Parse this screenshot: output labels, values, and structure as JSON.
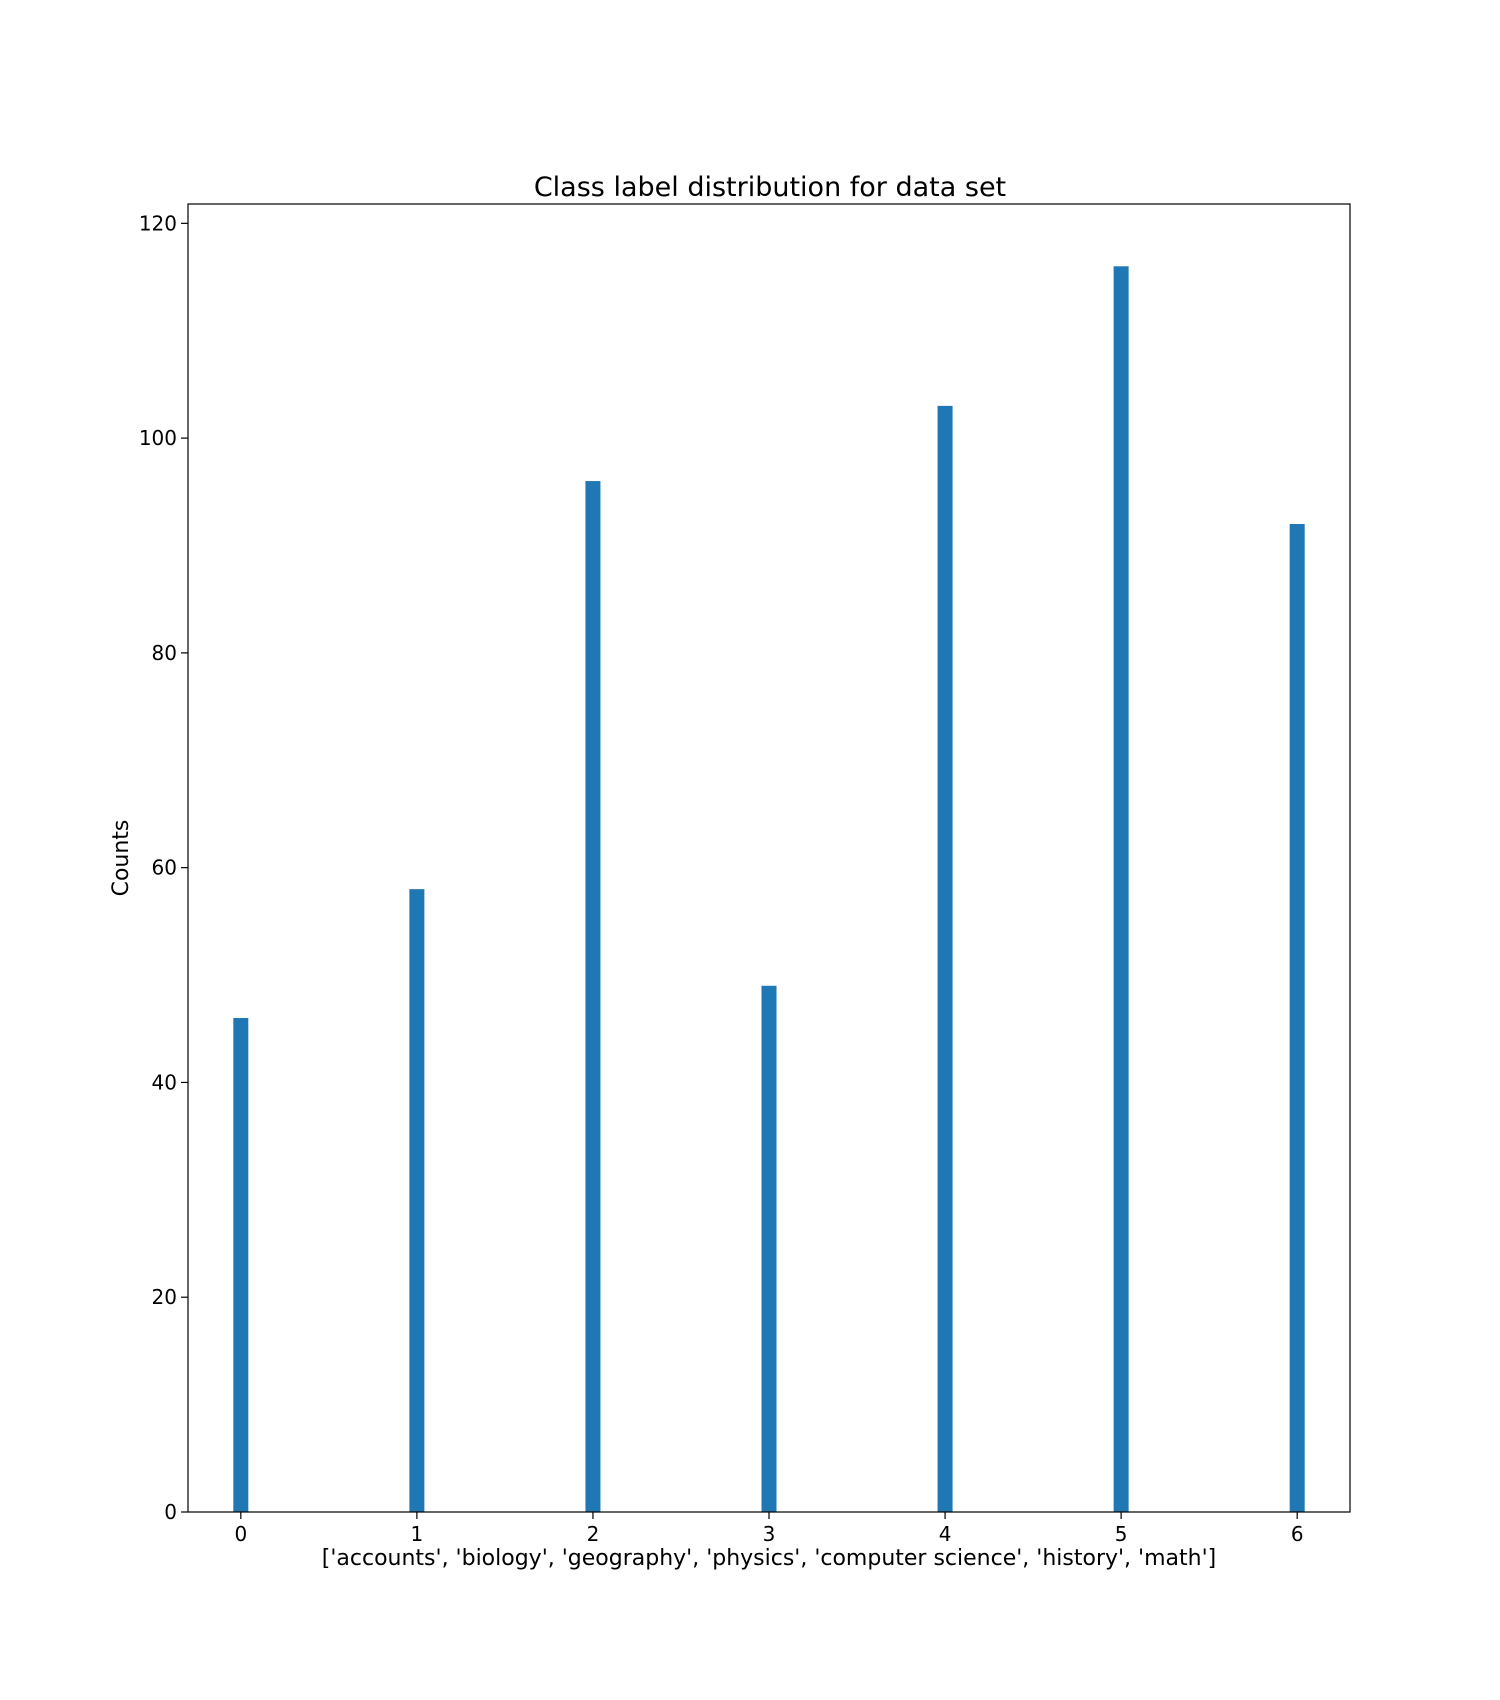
{
  "chart_data": {
    "type": "bar",
    "title": "Class label distribution for data set",
    "xlabel": "['accounts', 'biology', 'geography', 'physics', 'computer science', 'history', 'math']",
    "ylabel": "Counts",
    "x": [
      0,
      1,
      2,
      3,
      4,
      5,
      6
    ],
    "values": [
      46,
      58,
      96,
      49,
      103,
      116,
      92
    ],
    "xticks": [
      "0",
      "1",
      "2",
      "3",
      "4",
      "5",
      "6"
    ],
    "yticks": [
      "0",
      "20",
      "40",
      "60",
      "80",
      "100",
      "120"
    ],
    "xlim": [
      -0.3,
      6.3
    ],
    "ylim": [
      0,
      121.8
    ],
    "bar_color": "#1f77b4",
    "grid": false,
    "legend": false
  }
}
